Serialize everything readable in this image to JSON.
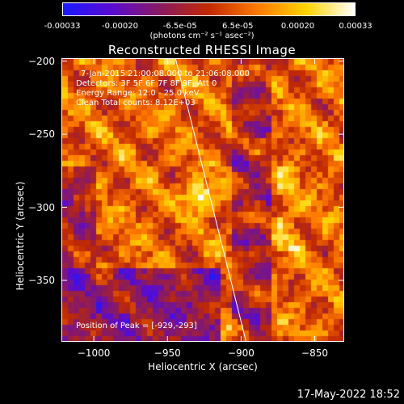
{
  "colorbar": {
    "tick_labels": [
      "-0.00033",
      "-0.00020",
      "-6.5e-05",
      "6.5e-05",
      "0.00020",
      "0.00033"
    ],
    "tick_values": [
      -0.00033,
      -0.0002,
      -6.5e-05,
      6.5e-05,
      0.0002,
      0.00033
    ],
    "units": "(photons cm⁻² s⁻¹ asec⁻²)",
    "colors": [
      "#1a1aff",
      "#5a0bd0",
      "#8a1a60",
      "#c22a00",
      "#ff7a00",
      "#ffd400",
      "#ffffff"
    ]
  },
  "title": "Reconstructed RHESSI Image",
  "info": {
    "time": "7-Jan-2015 21:00:08.000 to 21:06:08.000",
    "detectors": "Detectors: 3F 5F 6F 7F 8F 9F, Att 0",
    "energy": "Energy Range: 12.0 - 25.0 keV",
    "clean": "Clean     Total counts: 8.12E+03"
  },
  "peak_text": "Position of Peak = [-929,-293]",
  "chart_data": {
    "type": "heatmap",
    "title": "Reconstructed RHESSI Image",
    "xlabel": "Heliocentric X (arcsec)",
    "ylabel": "Heliocentric Y (arcsec)",
    "xlim": [
      -1022,
      -830
    ],
    "ylim": [
      -392,
      -198
    ],
    "x_tick_values": [
      -1000,
      -950,
      -900,
      -850
    ],
    "x_tick_labels": [
      "-1000",
      "-950",
      "-900",
      "-850"
    ],
    "y_tick_values": [
      -200,
      -250,
      -300,
      -350
    ],
    "y_tick_labels": [
      "-200",
      "-250",
      "-300",
      "-350"
    ],
    "value_range": [
      -0.00033,
      0.00033
    ],
    "peak_position": [
      -929,
      -293
    ],
    "limb_line": [
      [
        -945,
        -198
      ],
      [
        -897,
        -392
      ]
    ],
    "limb_color": "#ffffff"
  },
  "timestamp": "17-May-2022 18:52"
}
